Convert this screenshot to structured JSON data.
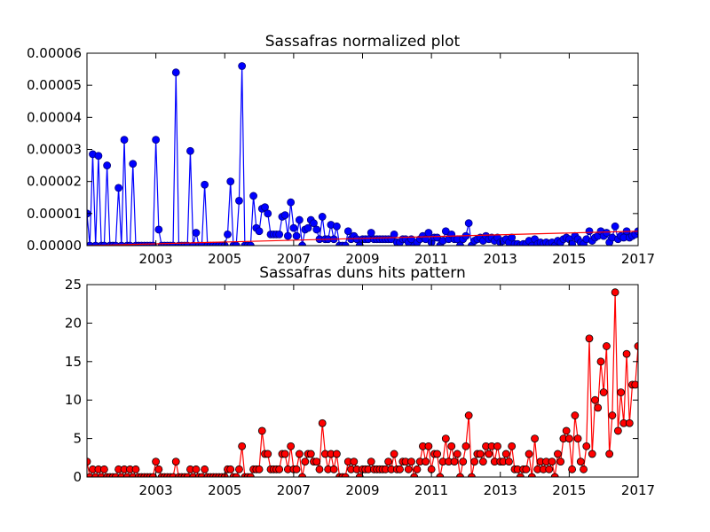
{
  "chart_data": [
    {
      "type": "line",
      "title": "Sassafras normalized plot",
      "xlim": [
        2001,
        2017
      ],
      "xticks": [
        2003,
        2005,
        2007,
        2009,
        2011,
        2013,
        2015,
        2017
      ],
      "ylim": [
        0,
        6e-05
      ],
      "yticks": [
        {
          "value": 0,
          "label": "0.00000"
        },
        {
          "value": 1e-05,
          "label": "0.00001"
        },
        {
          "value": 2e-05,
          "label": "0.00002"
        },
        {
          "value": 3e-05,
          "label": "0.00003"
        },
        {
          "value": 4e-05,
          "label": "0.00004"
        },
        {
          "value": 5e-05,
          "label": "0.00005"
        },
        {
          "value": 6e-05,
          "label": "0.00006"
        }
      ],
      "x": [
        2001,
        2001.083,
        2001.167,
        2001.25,
        2001.333,
        2001.417,
        2001.5,
        2001.583,
        2001.667,
        2001.75,
        2001.833,
        2001.917,
        2002,
        2002.083,
        2002.167,
        2002.25,
        2002.333,
        2002.417,
        2002.5,
        2002.583,
        2002.667,
        2002.75,
        2002.833,
        2002.917,
        2003,
        2003.083,
        2003.167,
        2003.25,
        2003.333,
        2003.417,
        2003.5,
        2003.583,
        2003.667,
        2003.75,
        2003.833,
        2003.917,
        2004,
        2004.083,
        2004.167,
        2004.25,
        2004.333,
        2004.417,
        2004.5,
        2004.583,
        2004.667,
        2004.75,
        2004.833,
        2004.917,
        2005,
        2005.083,
        2005.167,
        2005.25,
        2005.333,
        2005.417,
        2005.5,
        2005.583,
        2005.667,
        2005.75,
        2005.833,
        2005.917,
        2006,
        2006.083,
        2006.167,
        2006.25,
        2006.333,
        2006.417,
        2006.5,
        2006.583,
        2006.667,
        2006.75,
        2006.833,
        2006.917,
        2007,
        2007.083,
        2007.167,
        2007.25,
        2007.333,
        2007.417,
        2007.5,
        2007.583,
        2007.667,
        2007.75,
        2007.833,
        2007.917,
        2008,
        2008.083,
        2008.167,
        2008.25,
        2008.333,
        2008.417,
        2008.5,
        2008.583,
        2008.667,
        2008.75,
        2008.833,
        2008.917,
        2009,
        2009.083,
        2009.167,
        2009.25,
        2009.333,
        2009.417,
        2009.5,
        2009.583,
        2009.667,
        2009.75,
        2009.833,
        2009.917,
        2010,
        2010.083,
        2010.167,
        2010.25,
        2010.333,
        2010.417,
        2010.5,
        2010.583,
        2010.667,
        2010.75,
        2010.833,
        2010.917,
        2011,
        2011.083,
        2011.167,
        2011.25,
        2011.333,
        2011.417,
        2011.5,
        2011.583,
        2011.667,
        2011.75,
        2011.833,
        2011.917,
        2012,
        2012.083,
        2012.167,
        2012.25,
        2012.333,
        2012.417,
        2012.5,
        2012.583,
        2012.667,
        2012.75,
        2012.833,
        2012.917,
        2013,
        2013.083,
        2013.167,
        2013.25,
        2013.333,
        2013.417,
        2013.5,
        2013.583,
        2013.667,
        2013.75,
        2013.833,
        2013.917,
        2014,
        2014.083,
        2014.167,
        2014.25,
        2014.333,
        2014.417,
        2014.5,
        2014.583,
        2014.667,
        2014.75,
        2014.833,
        2014.917,
        2015,
        2015.083,
        2015.167,
        2015.25,
        2015.333,
        2015.417,
        2015.5,
        2015.583,
        2015.667,
        2015.75,
        2015.833,
        2015.917,
        2016,
        2016.083,
        2016.167,
        2016.25,
        2016.333,
        2016.417,
        2016.5,
        2016.583,
        2016.667,
        2016.75,
        2016.833,
        2016.917,
        2017
      ],
      "series": [
        {
          "color": "#0000ff",
          "marker": true,
          "marker_edgecolor": "#000080",
          "values": [
            1e-05,
            0,
            2.85e-05,
            0,
            2.8e-05,
            0,
            0,
            2.5e-05,
            0,
            0,
            0,
            1.8e-05,
            0,
            3.3e-05,
            0,
            0,
            2.55e-05,
            0,
            0,
            0,
            0,
            0,
            0,
            0,
            3.3e-05,
            5e-06,
            0,
            0,
            0,
            0,
            0,
            5.4e-05,
            0,
            0,
            0,
            0,
            2.95e-05,
            0,
            4e-06,
            0,
            0,
            1.9e-05,
            0,
            0,
            0,
            0,
            0,
            0,
            0,
            3.5e-06,
            2e-05,
            0,
            0,
            1.4e-05,
            5.6e-05,
            0,
            0,
            0,
            1.55e-05,
            5.5e-06,
            4.5e-06,
            1.15e-05,
            1.2e-05,
            1e-05,
            3.5e-06,
            3.5e-06,
            3.5e-06,
            3.5e-06,
            9e-06,
            9.5e-06,
            3e-06,
            1.35e-05,
            5.5e-06,
            3e-06,
            8e-06,
            0,
            5e-06,
            5.5e-06,
            8e-06,
            7e-06,
            5e-06,
            2e-06,
            9e-06,
            2e-06,
            2e-06,
            6.5e-06,
            2e-06,
            6e-06,
            0,
            0,
            0,
            4.5e-06,
            2e-06,
            3e-06,
            2e-06,
            0,
            2e-06,
            2e-06,
            2e-06,
            4e-06,
            2e-06,
            2e-06,
            2e-06,
            2e-06,
            2e-06,
            2e-06,
            2e-06,
            3.5e-06,
            1e-06,
            1e-06,
            2e-06,
            2e-06,
            1e-06,
            2e-06,
            0,
            1e-06,
            2e-06,
            3e-06,
            2e-06,
            4e-06,
            1e-06,
            2.5e-06,
            2.5e-06,
            0,
            1.5e-06,
            4.5e-06,
            2e-06,
            3.5e-06,
            2e-06,
            2e-06,
            0,
            2e-06,
            3e-06,
            7e-06,
            0,
            1.5e-06,
            2e-06,
            2.5e-06,
            1.5e-06,
            3e-06,
            2e-06,
            2.5e-06,
            1.5e-06,
            2.5e-06,
            1e-06,
            1.5e-06,
            2e-06,
            1e-06,
            2.5e-06,
            5e-07,
            5e-07,
            0,
            5e-07,
            5e-07,
            1.5e-06,
            0,
            2e-06,
            5e-07,
            1e-06,
            5e-07,
            1e-06,
            5e-07,
            1e-06,
            0,
            1.5e-06,
            1e-06,
            2e-06,
            2.5e-06,
            2e-06,
            5e-07,
            3e-06,
            2e-06,
            1e-06,
            5e-07,
            2e-06,
            4.5e-06,
            1.5e-06,
            2.5e-06,
            3e-06,
            4.5e-06,
            3e-06,
            4e-06,
            1e-06,
            2.5e-06,
            6e-06,
            2e-06,
            3e-06,
            2.5e-06,
            4.5e-06,
            2.5e-06,
            3e-06,
            3.5e-06,
            4.5e-06
          ]
        },
        {
          "color": "#ff0000",
          "marker": false,
          "x": [
            2001,
            2017
          ],
          "values": [
            0,
            4.5e-06
          ]
        }
      ]
    },
    {
      "type": "line",
      "title": "Sassafras duns hits pattern",
      "xlim": [
        2001,
        2017
      ],
      "xticks": [
        2003,
        2005,
        2007,
        2009,
        2011,
        2013,
        2015,
        2017
      ],
      "ylim": [
        0,
        25
      ],
      "yticks": [
        0,
        5,
        10,
        15,
        20,
        25
      ],
      "x": [
        2001,
        2001.083,
        2001.167,
        2001.25,
        2001.333,
        2001.417,
        2001.5,
        2001.583,
        2001.667,
        2001.75,
        2001.833,
        2001.917,
        2002,
        2002.083,
        2002.167,
        2002.25,
        2002.333,
        2002.417,
        2002.5,
        2002.583,
        2002.667,
        2002.75,
        2002.833,
        2002.917,
        2003,
        2003.083,
        2003.167,
        2003.25,
        2003.333,
        2003.417,
        2003.5,
        2003.583,
        2003.667,
        2003.75,
        2003.833,
        2003.917,
        2004,
        2004.083,
        2004.167,
        2004.25,
        2004.333,
        2004.417,
        2004.5,
        2004.583,
        2004.667,
        2004.75,
        2004.833,
        2004.917,
        2005,
        2005.083,
        2005.167,
        2005.25,
        2005.333,
        2005.417,
        2005.5,
        2005.583,
        2005.667,
        2005.75,
        2005.833,
        2005.917,
        2006,
        2006.083,
        2006.167,
        2006.25,
        2006.333,
        2006.417,
        2006.5,
        2006.583,
        2006.667,
        2006.75,
        2006.833,
        2006.917,
        2007,
        2007.083,
        2007.167,
        2007.25,
        2007.333,
        2007.417,
        2007.5,
        2007.583,
        2007.667,
        2007.75,
        2007.833,
        2007.917,
        2008,
        2008.083,
        2008.167,
        2008.25,
        2008.333,
        2008.417,
        2008.5,
        2008.583,
        2008.667,
        2008.75,
        2008.833,
        2008.917,
        2009,
        2009.083,
        2009.167,
        2009.25,
        2009.333,
        2009.417,
        2009.5,
        2009.583,
        2009.667,
        2009.75,
        2009.833,
        2009.917,
        2010,
        2010.083,
        2010.167,
        2010.25,
        2010.333,
        2010.417,
        2010.5,
        2010.583,
        2010.667,
        2010.75,
        2010.833,
        2010.917,
        2011,
        2011.083,
        2011.167,
        2011.25,
        2011.333,
        2011.417,
        2011.5,
        2011.583,
        2011.667,
        2011.75,
        2011.833,
        2011.917,
        2012,
        2012.083,
        2012.167,
        2012.25,
        2012.333,
        2012.417,
        2012.5,
        2012.583,
        2012.667,
        2012.75,
        2012.833,
        2012.917,
        2013,
        2013.083,
        2013.167,
        2013.25,
        2013.333,
        2013.417,
        2013.5,
        2013.583,
        2013.667,
        2013.75,
        2013.833,
        2013.917,
        2014,
        2014.083,
        2014.167,
        2014.25,
        2014.333,
        2014.417,
        2014.5,
        2014.583,
        2014.667,
        2014.75,
        2014.833,
        2014.917,
        2015,
        2015.083,
        2015.167,
        2015.25,
        2015.333,
        2015.417,
        2015.5,
        2015.583,
        2015.667,
        2015.75,
        2015.833,
        2015.917,
        2016,
        2016.083,
        2016.167,
        2016.25,
        2016.333,
        2016.417,
        2016.5,
        2016.583,
        2016.667,
        2016.75,
        2016.833,
        2016.917,
        2017
      ],
      "series": [
        {
          "color": "#ff0000",
          "marker": true,
          "marker_edgecolor": "#000000",
          "values": [
            2,
            0,
            1,
            0,
            1,
            0,
            1,
            0,
            0,
            0,
            0,
            1,
            0,
            1,
            0,
            1,
            0,
            1,
            0,
            0,
            0,
            0,
            0,
            0,
            2,
            1,
            0,
            0,
            0,
            0,
            0,
            2,
            0,
            0,
            0,
            0,
            1,
            0,
            1,
            0,
            0,
            1,
            0,
            0,
            0,
            0,
            0,
            0,
            0,
            1,
            1,
            0,
            0,
            1,
            4,
            0,
            0,
            0,
            1,
            1,
            1,
            6,
            3,
            3,
            1,
            1,
            1,
            1,
            3,
            3,
            1,
            4,
            1,
            1,
            3,
            0,
            2,
            3,
            3,
            2,
            2,
            1,
            7,
            3,
            1,
            3,
            1,
            3,
            0,
            0,
            0,
            2,
            1,
            2,
            1,
            0,
            1,
            1,
            1,
            2,
            1,
            1,
            1,
            1,
            1,
            2,
            1,
            3,
            1,
            1,
            2,
            2,
            1,
            2,
            0,
            1,
            2,
            4,
            2,
            4,
            1,
            3,
            3,
            0,
            2,
            5,
            2,
            4,
            2,
            3,
            0,
            2,
            4,
            8,
            0,
            2,
            3,
            3,
            2,
            4,
            3,
            4,
            2,
            4,
            2,
            2,
            3,
            2,
            4,
            1,
            1,
            0,
            1,
            1,
            3,
            0,
            5,
            1,
            2,
            1,
            2,
            1,
            2,
            0,
            3,
            2,
            5,
            6,
            5,
            1,
            8,
            5,
            2,
            1,
            4,
            18,
            3,
            10,
            9,
            15,
            11,
            17,
            3,
            8,
            24,
            6,
            11,
            7,
            16,
            7,
            12,
            12,
            17
          ]
        }
      ]
    }
  ]
}
